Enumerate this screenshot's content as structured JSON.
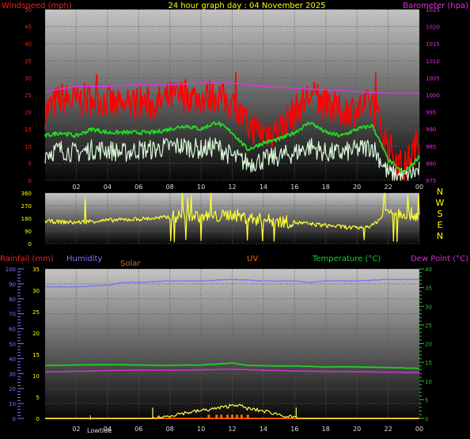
{
  "title": "24 hour graph day : 04 November 2025",
  "colors": {
    "background": "#000000",
    "plot_top": "#bdbdbd",
    "plot_bottom": "#0c0c0c",
    "grid": "#5a5a5a",
    "wind_gust": "#ff0000",
    "wind_avg": "#22dd22",
    "wind_speed": "#d8f8d8",
    "barometer": "#dd33dd",
    "direction": "#ffff33",
    "humidity": "#7777ff",
    "solar": "#ffff44",
    "uv": "#ff6600",
    "temperature": "#22cc22",
    "dew_point": "#cc33cc",
    "rainfall": "#ff5500",
    "text_left": "#ee2222",
    "text_label": "#ffff00",
    "solar_label": "#b07a30"
  },
  "labels": {
    "windspeed": "Windspeed (mph)",
    "barometer": "Barometer (hpa)",
    "rainfall": "Rainfall (mm)",
    "humidity": "Humidity",
    "solar": "Solar",
    "uv": "UV",
    "temperature": "Temperature (°C)",
    "dew_point": "Dew Point (°C)",
    "lowtide": "Lowtide",
    "compass": [
      "N",
      "W",
      "S",
      "E",
      "N"
    ]
  },
  "chart_data": [
    {
      "type": "line",
      "panel": "wind",
      "x_unit": "hour",
      "xlim": [
        0,
        24
      ],
      "x_ticks": [
        "02",
        "04",
        "06",
        "08",
        "10",
        "12",
        "14",
        "16",
        "18",
        "20",
        "22",
        "00"
      ],
      "y_left": {
        "label": "Windspeed (mph)",
        "ylim": [
          0,
          50
        ],
        "ticks": [
          0,
          5,
          10,
          15,
          20,
          25,
          30,
          35,
          40,
          45,
          50
        ]
      },
      "y_right": {
        "label": "Barometer (hpa)",
        "ylim": [
          975,
          1025
        ],
        "ticks": [
          975,
          980,
          985,
          990,
          995,
          1000,
          1005,
          1010,
          1015,
          1020,
          1025
        ]
      },
      "grid": true,
      "series": [
        {
          "key": "gust",
          "x": [
            0,
            1,
            2,
            3,
            4,
            5,
            6,
            7,
            8,
            9,
            10,
            11,
            12,
            13,
            14,
            15,
            16,
            17,
            18,
            19,
            20,
            21,
            22,
            23,
            24
          ],
          "values": [
            20,
            24,
            23,
            24,
            23,
            21,
            23,
            22,
            24,
            25,
            24,
            25,
            22,
            16,
            14,
            15,
            20,
            25,
            22,
            20,
            21,
            22,
            10,
            3,
            12
          ]
        },
        {
          "key": "average",
          "x": [
            0,
            1,
            2,
            3,
            4,
            5,
            6,
            7,
            8,
            9,
            10,
            11,
            12,
            13,
            14,
            15,
            16,
            17,
            18,
            19,
            20,
            21,
            22,
            23,
            24
          ],
          "values": [
            13,
            14,
            13,
            15,
            14,
            14,
            14,
            14,
            15,
            16,
            15,
            17,
            14,
            9,
            11,
            12,
            14,
            17,
            14,
            13,
            15,
            16,
            6,
            2,
            7
          ]
        },
        {
          "key": "speed",
          "x": [
            0,
            1,
            2,
            3,
            4,
            5,
            6,
            7,
            8,
            9,
            10,
            11,
            12,
            13,
            14,
            15,
            16,
            17,
            18,
            19,
            20,
            21,
            22,
            23,
            24
          ],
          "values": [
            8,
            9,
            8,
            9,
            9,
            8,
            9,
            9,
            10,
            10,
            9,
            10,
            7,
            5,
            6,
            7,
            8,
            10,
            8,
            8,
            9,
            10,
            2,
            1,
            3
          ]
        },
        {
          "key": "barometer",
          "axis": "right",
          "x": [
            0,
            2,
            4,
            6,
            8,
            10,
            12,
            13,
            14,
            16,
            18,
            20,
            22,
            24
          ],
          "values": [
            1001,
            1002.5,
            1002.5,
            1003,
            1003,
            1003.5,
            1003.5,
            1003,
            1002.5,
            1002,
            1001.5,
            1001,
            1000.5,
            1000.5
          ]
        }
      ]
    },
    {
      "type": "line",
      "panel": "wind_direction",
      "x_unit": "hour",
      "xlim": [
        0,
        24
      ],
      "ylim": [
        0,
        360
      ],
      "y_ticks": [
        0,
        90,
        180,
        270,
        360
      ],
      "grid": true,
      "series": [
        {
          "key": "direction",
          "x": [
            0,
            1,
            2,
            3,
            4,
            5,
            6,
            7,
            8,
            9,
            10,
            11,
            12,
            13,
            14,
            15,
            16,
            17,
            18,
            19,
            20,
            21,
            22,
            23,
            24
          ],
          "values": [
            160,
            155,
            150,
            160,
            165,
            170,
            175,
            180,
            190,
            200,
            195,
            190,
            210,
            180,
            170,
            160,
            150,
            140,
            130,
            120,
            110,
            130,
            230,
            220,
            200
          ]
        }
      ]
    },
    {
      "type": "line",
      "panel": "temperature_humidity",
      "x_unit": "hour",
      "xlim": [
        0,
        24
      ],
      "x_ticks": [
        "02",
        "04",
        "06",
        "08",
        "10",
        "12",
        "14",
        "16",
        "18",
        "20",
        "22",
        "00"
      ],
      "annotation": {
        "text": "Lowtide",
        "x": 2.9
      },
      "axes": {
        "humidity": {
          "ylim": [
            0,
            100
          ],
          "ticks": [
            0,
            10,
            20,
            30,
            40,
            50,
            60,
            70,
            80,
            90,
            100
          ]
        },
        "rainfall": {
          "ylim": [
            0,
            35
          ],
          "ticks": [
            0,
            5,
            10,
            15,
            20,
            25,
            30,
            35
          ]
        },
        "temperature": {
          "ylim": [
            0,
            40
          ],
          "ticks": [
            0,
            5,
            10,
            15,
            20,
            25,
            30,
            35,
            40
          ]
        }
      },
      "grid": true,
      "series": [
        {
          "key": "humidity",
          "axis": "humidity",
          "x": [
            0,
            2,
            4,
            5,
            6,
            8,
            10,
            12,
            14,
            16,
            17,
            18,
            20,
            22,
            24
          ],
          "values": [
            88,
            88,
            89,
            91,
            91,
            92,
            92,
            93,
            92,
            92,
            91,
            92,
            92,
            93,
            93
          ]
        },
        {
          "key": "temperature",
          "axis": "temperature",
          "x": [
            0,
            2,
            4,
            6,
            8,
            10,
            12,
            13,
            14,
            16,
            18,
            20,
            22,
            24
          ],
          "values": [
            14.2,
            14.3,
            14.4,
            14.3,
            14.2,
            14.3,
            14.8,
            14.2,
            14.1,
            14.0,
            13.8,
            13.8,
            13.6,
            13.4
          ]
        },
        {
          "key": "dew_point",
          "axis": "temperature",
          "x": [
            0,
            2,
            4,
            6,
            8,
            10,
            12,
            14,
            16,
            18,
            20,
            22,
            24
          ],
          "values": [
            12.5,
            12.6,
            12.8,
            12.9,
            12.9,
            13.0,
            13.2,
            12.9,
            12.7,
            12.6,
            12.5,
            12.4,
            12.3
          ]
        },
        {
          "key": "solar",
          "axis": "temperature",
          "x": [
            0,
            6.9,
            7.5,
            8.5,
            9.5,
            10.5,
            11.5,
            12.2,
            13,
            14,
            15,
            15.8,
            16.1,
            24
          ],
          "values": [
            0,
            0,
            0.3,
            1.2,
            1.8,
            2.4,
            3.0,
            3.8,
            2.6,
            2.0,
            1.1,
            0.3,
            0,
            0
          ]
        },
        {
          "key": "uv",
          "axis": "temperature",
          "x": [
            10.5,
            11.0,
            11.3,
            11.7,
            12.0,
            12.3,
            12.6,
            13.0
          ],
          "values": [
            1,
            1,
            1,
            1,
            1,
            1,
            1,
            1
          ]
        },
        {
          "key": "rainfall",
          "axis": "rainfall",
          "x": [
            0,
            24
          ],
          "values": [
            0,
            0
          ]
        }
      ]
    }
  ]
}
